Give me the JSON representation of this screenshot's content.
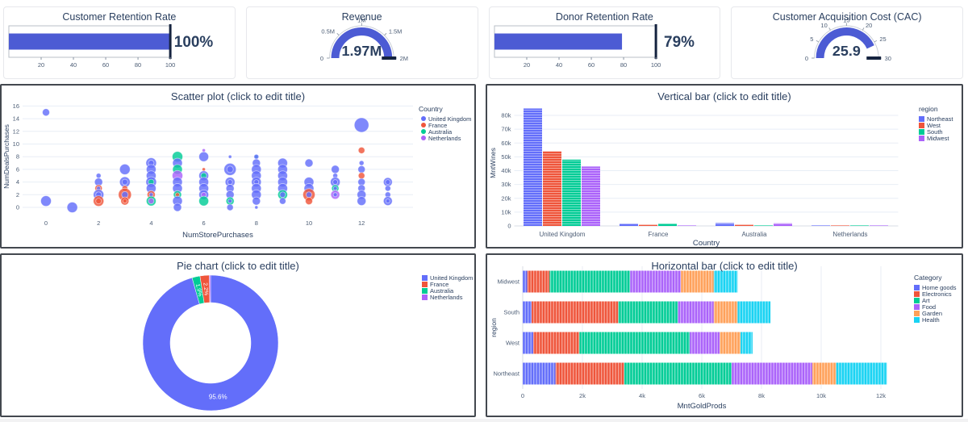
{
  "palette": {
    "blue": "#636EFA",
    "red": "#EF553B",
    "green": "#00CC96",
    "purple": "#AB63FA",
    "orange": "#FFA15A",
    "cyan": "#19D3F3",
    "kpi_accent": "#4C5BD4",
    "threshold": "#15233F",
    "text": "#2a3f5f",
    "tick_text": "#4c5d75",
    "grid": "#E8EEF6",
    "axis_line": "#d8dee6",
    "gauge_axis": "#c9ced6",
    "box_border": "#b9bfc7"
  },
  "chart_data": [
    {
      "type": "bullet",
      "title": "Customer Retention Rate",
      "value": 100,
      "value_display": "100%",
      "min": 0,
      "max": 100,
      "threshold": 100,
      "ticks": [
        20,
        40,
        60,
        80,
        100
      ],
      "tick_labels": [
        "20",
        "40",
        "60",
        "80",
        "100"
      ]
    },
    {
      "type": "gauge",
      "title": "Revenue",
      "value": 1970000,
      "value_display": "1.97M",
      "min": 0,
      "max": 2000000,
      "threshold": 2000000,
      "ticks": [
        0,
        500000,
        1000000,
        1500000,
        2000000
      ],
      "tick_labels": [
        "0",
        "0.5M",
        "1M",
        "1.5M",
        "2M"
      ]
    },
    {
      "type": "bullet",
      "title": "Donor Retention Rate",
      "value": 79,
      "value_display": "79%",
      "min": 0,
      "max": 100,
      "threshold": 100,
      "ticks": [
        20,
        40,
        60,
        80,
        100
      ],
      "tick_labels": [
        "20",
        "40",
        "60",
        "80",
        "100"
      ]
    },
    {
      "type": "gauge",
      "title": "Customer Acquisition Cost (CAC)",
      "value": 25.9,
      "value_display": "25.9",
      "min": 0,
      "max": 30,
      "threshold": 30,
      "ticks": [
        0,
        5,
        10,
        15,
        20,
        25,
        30
      ],
      "tick_labels": [
        "0",
        "5",
        "10",
        "15",
        "20",
        "25",
        "30"
      ]
    },
    {
      "type": "scatter",
      "title": "Scatter plot (click to edit title)",
      "xlabel": "NumStorePurchases",
      "ylabel": "NumDealsPurchases",
      "xticks": [
        0,
        2,
        4,
        6,
        8,
        10,
        12
      ],
      "yticks": [
        0,
        2,
        4,
        6,
        8,
        10,
        12,
        14,
        16
      ],
      "xlim": [
        -0.9,
        14
      ],
      "ylim": [
        -1.2,
        17
      ],
      "legend_title": "Country",
      "series": [
        {
          "name": "United Kingdom",
          "color": "#636EFA"
        },
        {
          "name": "France",
          "color": "#EF553B"
        },
        {
          "name": "Australia",
          "color": "#00CC96"
        },
        {
          "name": "Netherlands",
          "color": "#AB63FA"
        }
      ],
      "points": [
        [
          0,
          15,
          4.5,
          0
        ],
        [
          0,
          1,
          6.5,
          0
        ],
        [
          1,
          0,
          6.5,
          0
        ],
        [
          2,
          5,
          3,
          0
        ],
        [
          2,
          4,
          5,
          0
        ],
        [
          2,
          3,
          4.5,
          1
        ],
        [
          2,
          3,
          2.5,
          0
        ],
        [
          2,
          2,
          6.5,
          0
        ],
        [
          2,
          2,
          3.5,
          0
        ],
        [
          2,
          1,
          6.5,
          1
        ],
        [
          2,
          1,
          3.5,
          1
        ],
        [
          3,
          6,
          6.5,
          0
        ],
        [
          3,
          4,
          6.5,
          0
        ],
        [
          3,
          4,
          3.5,
          0
        ],
        [
          3,
          3,
          3.5,
          1
        ],
        [
          3,
          2,
          8,
          1
        ],
        [
          3,
          2,
          4,
          0
        ],
        [
          3,
          1,
          5,
          1
        ],
        [
          3,
          1,
          2.5,
          1
        ],
        [
          4,
          7,
          6.5,
          0
        ],
        [
          4,
          7,
          3.5,
          0
        ],
        [
          4,
          6,
          6,
          0
        ],
        [
          4,
          5,
          6,
          0
        ],
        [
          4,
          4,
          6.5,
          0
        ],
        [
          4,
          4,
          3.5,
          2
        ],
        [
          4,
          3,
          6,
          0
        ],
        [
          4,
          2,
          5,
          1
        ],
        [
          4,
          2,
          2.5,
          0
        ],
        [
          4,
          1,
          6,
          2
        ],
        [
          4,
          1,
          3.5,
          3
        ],
        [
          5,
          8,
          6.5,
          2
        ],
        [
          5,
          7,
          6,
          0
        ],
        [
          5,
          6,
          6,
          2
        ],
        [
          5,
          5,
          6.5,
          3
        ],
        [
          5,
          4,
          6,
          0
        ],
        [
          5,
          3,
          6,
          0
        ],
        [
          5,
          2,
          5,
          2
        ],
        [
          5,
          2,
          2.5,
          1
        ],
        [
          5,
          1,
          6,
          0
        ],
        [
          5,
          0,
          5,
          0
        ],
        [
          6,
          9,
          2,
          3
        ],
        [
          6,
          8,
          6,
          0
        ],
        [
          6,
          6,
          2,
          1
        ],
        [
          6,
          5,
          6,
          0
        ],
        [
          6,
          5,
          3.5,
          2
        ],
        [
          6,
          4,
          6,
          0
        ],
        [
          6,
          3,
          6,
          0
        ],
        [
          6,
          2,
          6,
          0
        ],
        [
          6,
          2,
          3,
          3
        ],
        [
          6,
          1,
          6,
          2
        ],
        [
          7,
          8,
          2,
          0
        ],
        [
          7,
          6,
          7.5,
          0
        ],
        [
          7,
          6,
          4,
          0
        ],
        [
          7,
          4,
          6,
          0
        ],
        [
          7,
          4,
          3,
          0
        ],
        [
          7,
          3,
          5,
          0
        ],
        [
          7,
          2,
          5,
          0
        ],
        [
          7,
          1,
          5,
          2
        ],
        [
          7,
          1,
          2.5,
          0
        ],
        [
          7,
          0,
          4,
          0
        ],
        [
          8,
          8,
          2,
          2
        ],
        [
          8,
          8,
          3,
          0
        ],
        [
          8,
          7,
          5,
          0
        ],
        [
          8,
          6,
          6,
          0
        ],
        [
          8,
          5,
          6,
          0
        ],
        [
          8,
          4,
          6,
          0
        ],
        [
          8,
          4,
          3,
          0
        ],
        [
          8,
          3,
          6,
          0
        ],
        [
          8,
          2,
          6,
          0
        ],
        [
          8,
          1,
          5,
          0
        ],
        [
          8,
          0,
          2,
          0
        ],
        [
          9,
          7,
          6,
          0
        ],
        [
          9,
          6,
          6,
          0
        ],
        [
          9,
          5,
          6,
          0
        ],
        [
          9,
          4,
          6,
          0
        ],
        [
          9,
          3,
          6,
          0
        ],
        [
          9,
          2,
          6,
          2
        ],
        [
          9,
          2,
          3.5,
          0
        ],
        [
          9,
          1,
          4,
          0
        ],
        [
          10,
          7,
          5,
          0
        ],
        [
          10,
          4,
          6,
          0
        ],
        [
          10,
          3,
          6,
          0
        ],
        [
          10,
          2,
          7.5,
          1
        ],
        [
          10,
          2,
          3.5,
          0
        ],
        [
          10,
          1,
          4.5,
          1
        ],
        [
          11,
          6,
          5,
          0
        ],
        [
          11,
          5,
          3,
          0
        ],
        [
          11,
          4,
          6,
          0
        ],
        [
          11,
          4,
          3,
          0
        ],
        [
          11,
          3,
          4.5,
          2
        ],
        [
          11,
          3,
          2.5,
          0
        ],
        [
          11,
          2,
          5.5,
          3
        ],
        [
          11,
          2,
          2.5,
          0
        ],
        [
          12,
          13,
          9,
          0
        ],
        [
          12,
          9,
          4,
          1
        ],
        [
          12,
          7,
          3,
          0
        ],
        [
          12,
          6,
          4.5,
          0
        ],
        [
          12,
          5,
          4,
          1
        ],
        [
          12,
          4,
          4.5,
          0
        ],
        [
          12,
          3,
          4.5,
          0
        ],
        [
          12,
          2,
          5.5,
          0
        ],
        [
          12,
          1,
          5.5,
          0
        ],
        [
          13,
          4,
          5.5,
          0
        ],
        [
          13,
          4,
          3,
          0
        ],
        [
          13,
          3,
          3.5,
          0
        ],
        [
          13,
          2,
          3.5,
          0
        ],
        [
          13,
          1,
          5.5,
          0
        ],
        [
          13,
          1,
          2.5,
          0
        ]
      ]
    },
    {
      "type": "bar",
      "title": "Vertical bar (click to edit title)",
      "xlabel": "Country",
      "ylabel": "MntWines",
      "categories": [
        "United Kingdom",
        "France",
        "Australia",
        "Netherlands"
      ],
      "legend_title": "region",
      "series": [
        {
          "name": "Northeast",
          "color": "#636EFA",
          "values": [
            85000,
            1600,
            2100,
            300
          ]
        },
        {
          "name": "West",
          "color": "#EF553B",
          "values": [
            54000,
            800,
            800,
            100
          ]
        },
        {
          "name": "South",
          "color": "#00CC96",
          "values": [
            48000,
            1700,
            300,
            150
          ]
        },
        {
          "name": "Midwest",
          "color": "#AB63FA",
          "values": [
            43000,
            100,
            1900,
            100
          ]
        }
      ],
      "yticks": [
        0,
        10000,
        20000,
        30000,
        40000,
        50000,
        60000,
        70000,
        80000
      ],
      "ytick_labels": [
        "0",
        "10k",
        "20k",
        "30k",
        "40k",
        "50k",
        "60k",
        "70k",
        "80k"
      ],
      "ylim": [
        0,
        90000
      ]
    },
    {
      "type": "pie",
      "title": "Pie chart (click to edit title)",
      "labels": [
        "United Kingdom",
        "France",
        "Australia",
        "Netherlands"
      ],
      "values": [
        95.6,
        2.2,
        1.9,
        0.3
      ],
      "slice_labels": [
        "95.6%",
        "2.2%",
        "1.9%",
        ""
      ],
      "colors": [
        "#636EFA",
        "#EF553B",
        "#00CC96",
        "#AB63FA"
      ],
      "draw_order": [
        0,
        2,
        1,
        3
      ],
      "donut": true
    },
    {
      "type": "bar-h-stacked",
      "title": "Horizontal bar (click to edit title)",
      "xlabel": "MntGoldProds",
      "ylabel": "region",
      "categories": [
        "Midwest",
        "South",
        "West",
        "Northeast"
      ],
      "legend_title": "Category",
      "series": [
        {
          "name": "Home goods",
          "color": "#636EFA",
          "values": [
            150,
            300,
            350,
            1100
          ]
        },
        {
          "name": "Electronics",
          "color": "#EF553B",
          "values": [
            750,
            2900,
            1550,
            2300
          ]
        },
        {
          "name": "Art",
          "color": "#00CC96",
          "values": [
            2700,
            2000,
            3700,
            3600
          ]
        },
        {
          "name": "Food",
          "color": "#AB63FA",
          "values": [
            1700,
            1200,
            1000,
            2700
          ]
        },
        {
          "name": "Garden",
          "color": "#FFA15A",
          "values": [
            1100,
            800,
            700,
            800
          ]
        },
        {
          "name": "Health",
          "color": "#19D3F3",
          "values": [
            800,
            1100,
            400,
            1700
          ]
        }
      ],
      "xticks": [
        0,
        2000,
        4000,
        6000,
        8000,
        10000,
        12000
      ],
      "xtick_labels": [
        "0",
        "2k",
        "4k",
        "6k",
        "8k",
        "10k",
        "12k"
      ],
      "xlim": [
        0,
        13000
      ]
    }
  ]
}
